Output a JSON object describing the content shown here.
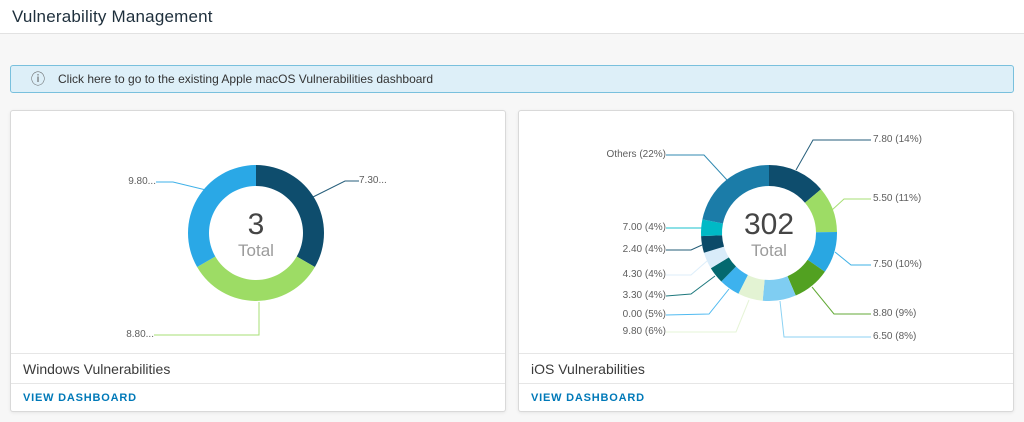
{
  "page": {
    "title": "Vulnerability Management"
  },
  "banner": {
    "icon": "info-circle-icon",
    "text": "Click here to go to the existing Apple macOS Vulnerabilities dashboard",
    "bg_color": "#ddeff8",
    "border_color": "#79c0dd"
  },
  "link_color": "#0079b8",
  "cards": [
    {
      "title": "Windows Vulnerabilities",
      "link_label": "VIEW DASHBOARD",
      "chart_data": {
        "type": "pie",
        "donut": true,
        "center": {
          "value": "3",
          "label": "Total"
        },
        "slices": [
          {
            "value": "7.30",
            "pct": 33.33,
            "color": "#0E4D6D"
          },
          {
            "value": "8.80",
            "pct": 33.33,
            "color": "#9DDC65"
          },
          {
            "value": "9.80",
            "pct": 33.33,
            "color": "#2AA8E6"
          }
        ],
        "labels": [
          {
            "text": "9.80...",
            "slice": 2
          },
          {
            "text": "7.30...",
            "slice": 0
          },
          {
            "text": "8.80...",
            "slice": 1
          }
        ]
      }
    },
    {
      "title": "iOS Vulnerabilities",
      "link_label": "VIEW DASHBOARD",
      "chart_data": {
        "type": "pie",
        "donut": true,
        "center": {
          "value": "302",
          "label": "Total"
        },
        "slices": [
          {
            "value": "7.80",
            "pct": 14,
            "color": "#0E4D6D"
          },
          {
            "value": "5.50",
            "pct": 11,
            "color": "#9DDC65"
          },
          {
            "value": "7.50",
            "pct": 10,
            "color": "#29A7E2"
          },
          {
            "value": "8.80",
            "pct": 9,
            "color": "#52A121"
          },
          {
            "value": "6.50",
            "pct": 8,
            "color": "#7FCDF2"
          },
          {
            "value": "9.80",
            "pct": 6,
            "color": "#E3F3D3"
          },
          {
            "value": "0.00",
            "pct": 5,
            "color": "#3DB2EE"
          },
          {
            "value": "3.30",
            "pct": 4,
            "color": "#04696F"
          },
          {
            "value": "4.30",
            "pct": 4,
            "color": "#D9ECFA"
          },
          {
            "value": "2.40",
            "pct": 4,
            "color": "#0B4A68"
          },
          {
            "value": "7.00",
            "pct": 4,
            "color": "#00B9C6"
          },
          {
            "value": "Others",
            "pct": 22,
            "color": "#1B7CA8"
          }
        ],
        "labels": [
          {
            "text": "Others (22%)",
            "slice": 11
          },
          {
            "text": "7.00 (4%)",
            "slice": 10
          },
          {
            "text": "2.40 (4%)",
            "slice": 9
          },
          {
            "text": "4.30 (4%)",
            "slice": 8
          },
          {
            "text": "3.30 (4%)",
            "slice": 7
          },
          {
            "text": "0.00 (5%)",
            "slice": 6
          },
          {
            "text": "9.80 (6%)",
            "slice": 5
          },
          {
            "text": "7.80 (14%)",
            "slice": 0
          },
          {
            "text": "5.50 (11%)",
            "slice": 1
          },
          {
            "text": "7.50 (10%)",
            "slice": 2
          },
          {
            "text": "8.80 (9%)",
            "slice": 3
          },
          {
            "text": "6.50 (8%)",
            "slice": 4
          }
        ]
      }
    }
  ]
}
